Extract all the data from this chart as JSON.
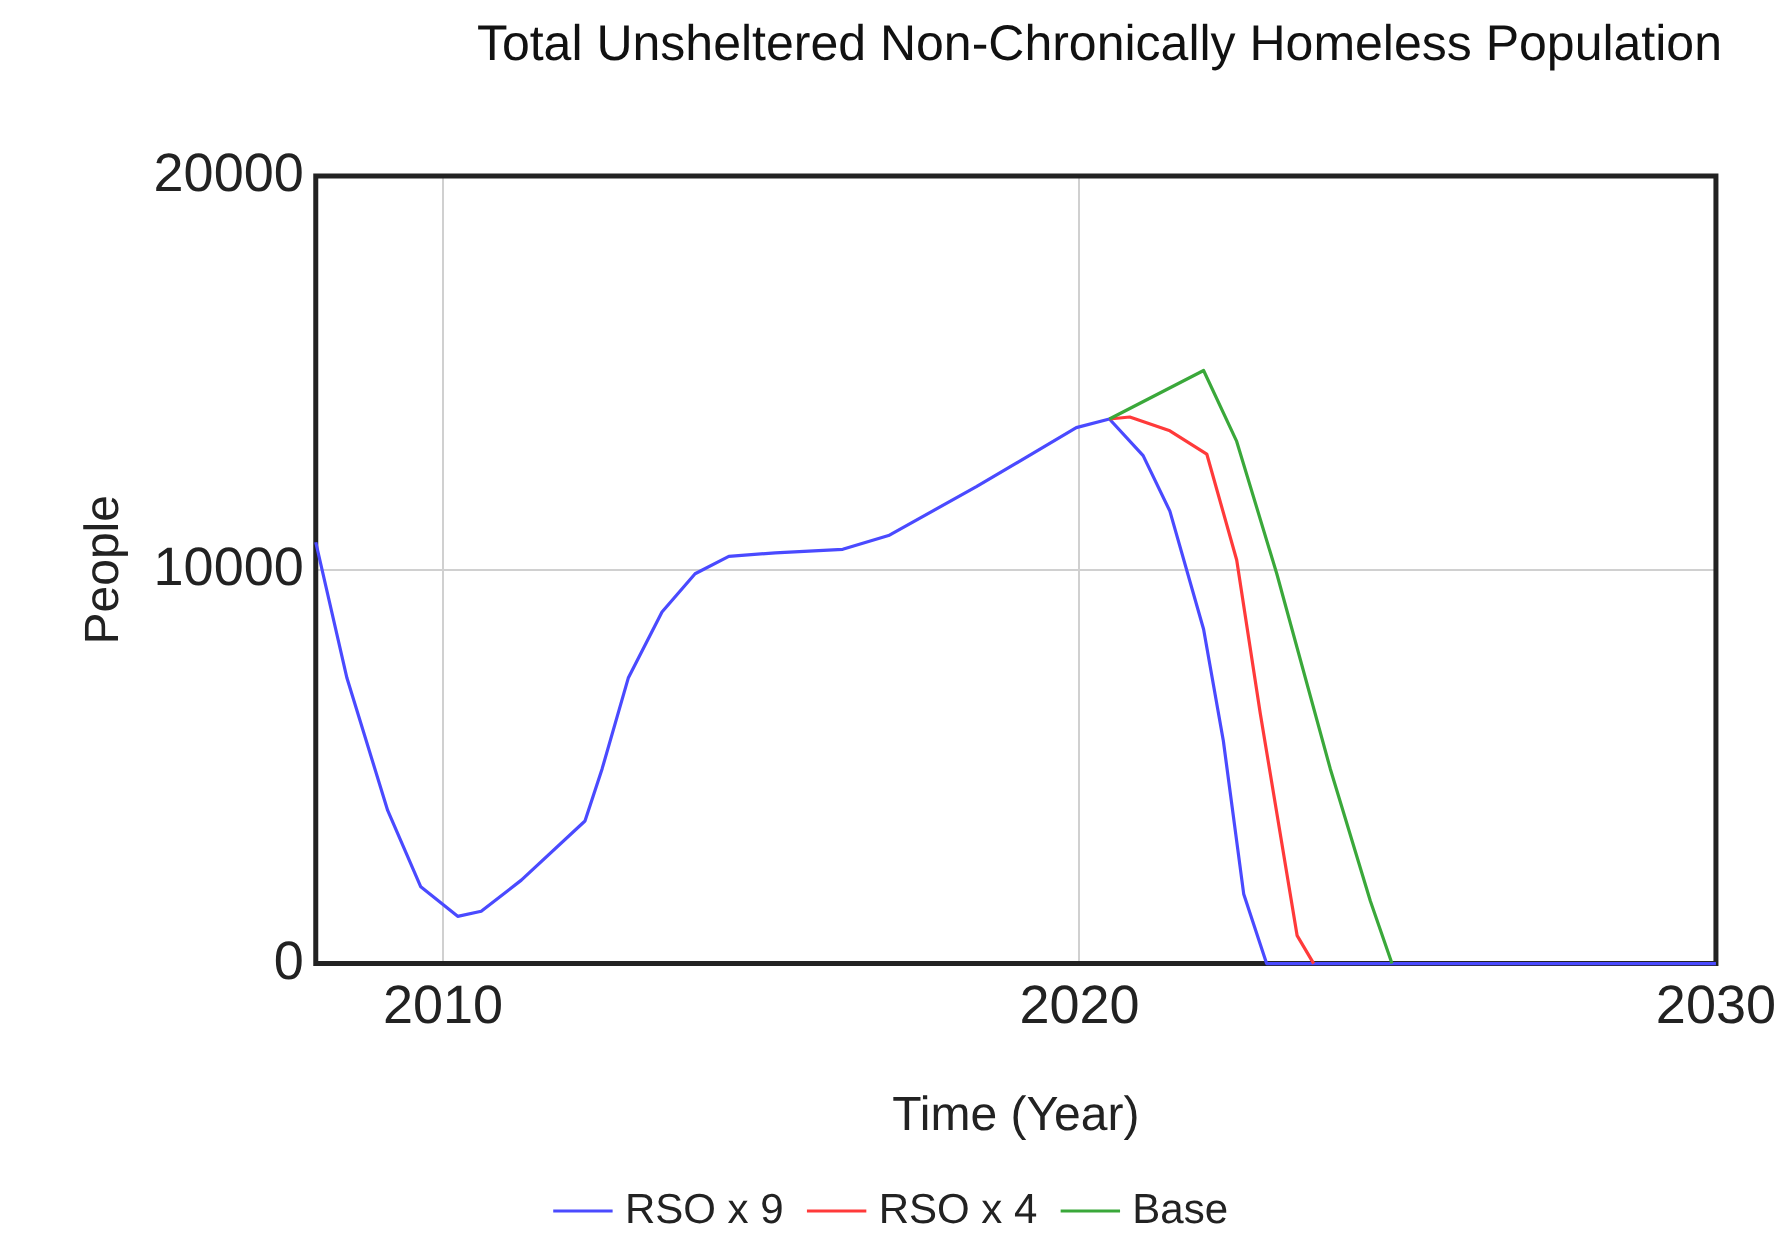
{
  "chart_data": {
    "type": "line",
    "title": "Total Unsheltered Non-Chronically Homeless Population",
    "xlabel": "Time (Year)",
    "ylabel": "People",
    "xlim": [
      2008,
      2030
    ],
    "xticks": [
      2010,
      2020,
      2030
    ],
    "ylim": [
      0,
      20000
    ],
    "yticks": [
      0,
      10000,
      20000
    ],
    "grid": true,
    "legend": "bottom",
    "marker": "none",
    "line_style": "solid",
    "series": [
      {
        "name": "RSO x 9",
        "color": "#4a4aff",
        "x": [
          2008,
          2008.49,
          2009.13,
          2009.65,
          2010.23,
          2010.6,
          2011.23,
          2012.23,
          2012.5,
          2012.91,
          2013.44,
          2013.96,
          2014.49,
          2015.22,
          2016.28,
          2017,
          2018.38,
          2019.95,
          2020.47,
          2021,
          2021.42,
          2021.95,
          2022.26,
          2022.58,
          2022.94,
          2030
        ],
        "values": [
          10700,
          7250,
          3890,
          1950,
          1200,
          1330,
          2120,
          3620,
          4950,
          7250,
          8930,
          9900,
          10340,
          10430,
          10520,
          10870,
          12110,
          13610,
          13830,
          12900,
          11490,
          8490,
          5660,
          1770,
          0,
          0
        ]
      },
      {
        "name": "RSO x 4",
        "color": "#ff3a3a",
        "x": [
          2020.47,
          2020.79,
          2021.42,
          2022,
          2022.47,
          2022.84,
          2023.42,
          2023.68
        ],
        "values": [
          13830,
          13880,
          13530,
          12940,
          10250,
          6360,
          710,
          0
        ]
      },
      {
        "name": "Base",
        "color": "#3aa83a",
        "x": [
          2020.47,
          2021.95,
          2022.47,
          2023.1,
          2023.94,
          2024.57,
          2024.91
        ],
        "values": [
          13830,
          15060,
          13260,
          9900,
          4950,
          1590,
          0
        ]
      }
    ]
  }
}
